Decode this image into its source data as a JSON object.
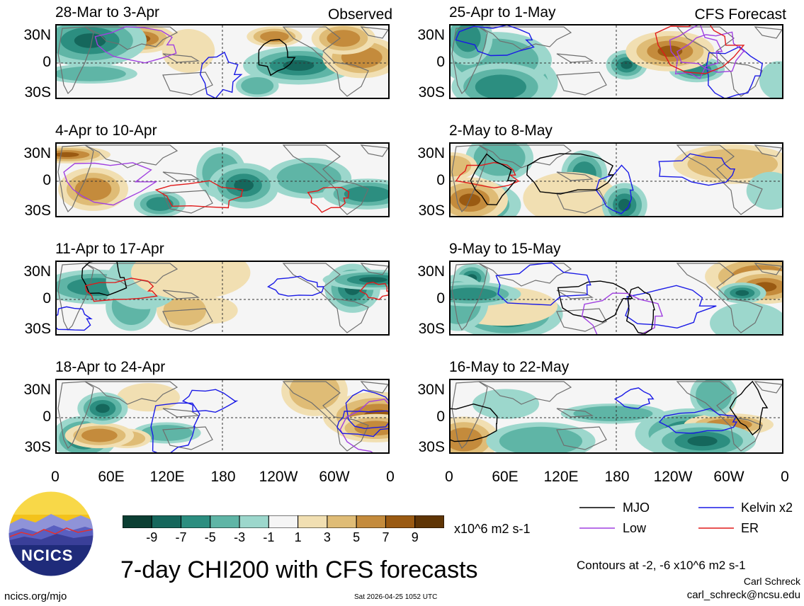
{
  "chart_data": {
    "type": "heatmap",
    "title": "7-day CHI200 with CFS forecasts",
    "variable": "CHI200",
    "units": "x10^6 m2 s-1",
    "colorbar_ticks": [
      "-9",
      "-7",
      "-5",
      "-3",
      "-1",
      "1",
      "3",
      "5",
      "7",
      "9"
    ],
    "colorbar_colors": [
      "#0b3f33",
      "#15675c",
      "#2c8e80",
      "#5fb5a6",
      "#9cd7cc",
      "#f5f5f5",
      "#f1dfb2",
      "#dfbc76",
      "#c48b3c",
      "#9a5a12",
      "#5f3505"
    ],
    "lat_labels": [
      "30N",
      "0",
      "30S"
    ],
    "lon_labels": [
      "0",
      "60E",
      "120E",
      "180",
      "120W",
      "60W",
      "0"
    ],
    "observed_label": "Observed",
    "forecast_label": "CFS Forecast",
    "panels_observed": [
      {
        "period": "28-Mar to 3-Apr"
      },
      {
        "period": "4-Apr to 10-Apr"
      },
      {
        "period": "11-Apr to 17-Apr"
      },
      {
        "period": "18-Apr to 24-Apr"
      }
    ],
    "panels_forecast": [
      {
        "period": "25-Apr to 1-May"
      },
      {
        "period": "2-May to 8-May"
      },
      {
        "period": "9-May to 15-May"
      },
      {
        "period": "16-May to 22-May"
      }
    ],
    "legend": [
      {
        "name": "MJO",
        "color": "#000000"
      },
      {
        "name": "Kelvin x2",
        "color": "#1a1ae6"
      },
      {
        "name": "Low",
        "color": "#a040e0"
      },
      {
        "name": "ER",
        "color": "#e01a1a"
      }
    ],
    "contours_note": "Contours at -2, -6 x10^6 m2 s-1"
  },
  "footer": {
    "logo_text": "NCICS",
    "site": "ncics.org/mjo",
    "timestamp": "Sat 2026-04-25 1052 UTC",
    "author": "Carl Schreck",
    "email": "carl_schreck@ncsu.edu"
  }
}
